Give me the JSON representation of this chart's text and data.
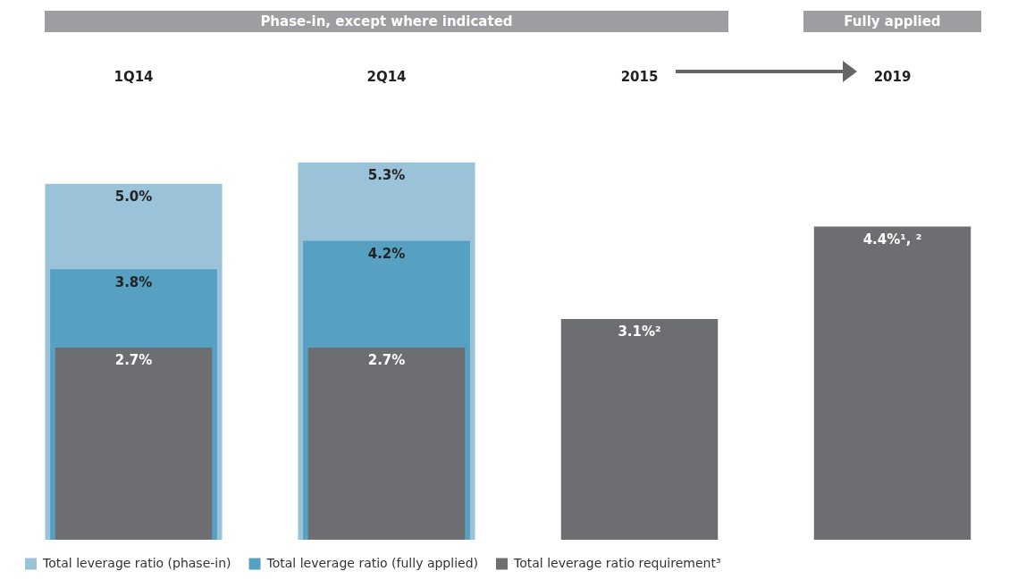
{
  "chart_data": {
    "type": "bar",
    "categories": [
      "1Q14",
      "2Q14",
      "2015",
      "2019"
    ],
    "annotations": [
      "Phase-in, except where indicated",
      "Fully applied"
    ],
    "series": [
      {
        "name": "Total leverage ratio (phase-in)",
        "color": "#9ac2d8",
        "values": [
          5.0,
          5.3,
          null,
          null
        ],
        "value_labels": [
          "5.0%",
          "5.3%",
          null,
          null
        ]
      },
      {
        "name": "Total leverage ratio (fully applied)",
        "color": "#56a1c2",
        "values": [
          3.8,
          4.2,
          null,
          null
        ],
        "value_labels": [
          "3.8%",
          "4.2%",
          null,
          null
        ]
      },
      {
        "name": "Total leverage ratio requirement³",
        "color": "#6d6e71",
        "values": [
          2.7,
          2.7,
          3.1,
          4.4
        ],
        "value_labels": [
          "2.7%",
          "2.7%",
          "3.1%²",
          "4.4%¹, ²"
        ]
      }
    ],
    "legend": "bottom",
    "grid": false
  }
}
